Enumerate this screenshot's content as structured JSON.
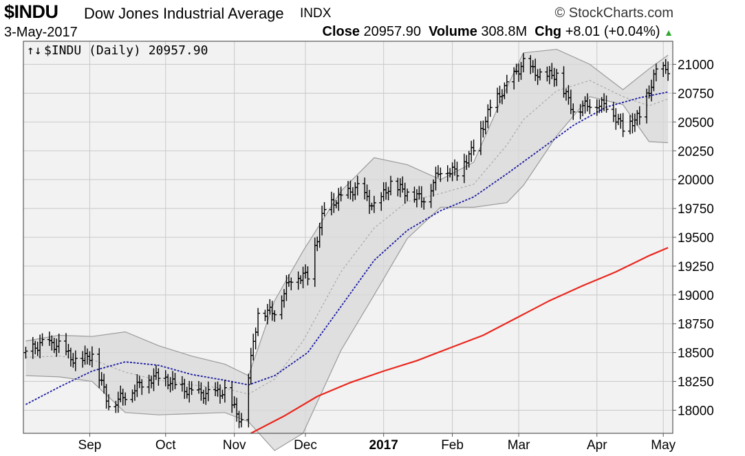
{
  "header": {
    "symbol": "$INDU",
    "company": "Dow Jones Industrial Average",
    "exchange": "INDX",
    "source": "© StockCharts.com",
    "date": "3-May-2017",
    "close_label": "Close",
    "close_value": "20957.90",
    "volume_label": "Volume",
    "volume_value": "308.8M",
    "chg_label": "Chg",
    "chg_value": "+8.01 (+0.04%)",
    "chg_direction_icon": "▲"
  },
  "legend": {
    "icon": "↑↓",
    "text": "$INDU (Daily) 20957.90"
  },
  "chart_data": {
    "type": "line",
    "ylim": [
      17800,
      21200
    ],
    "y_ticks": [
      18000,
      18250,
      18500,
      18750,
      19000,
      19250,
      19500,
      19750,
      20000,
      20250,
      20500,
      20750,
      21000
    ],
    "y_tick_labels": [
      "18000",
      "18250",
      "18500",
      "18750",
      "19000",
      "19250",
      "19500",
      "19750",
      "20000",
      "20250",
      "20500",
      "20750",
      "21000"
    ],
    "x_ticks": [
      {
        "label": "Sep",
        "date": "2016-09-01",
        "bold": false
      },
      {
        "label": "Oct",
        "date": "2016-10-03",
        "bold": false
      },
      {
        "label": "Nov",
        "date": "2016-11-01",
        "bold": false
      },
      {
        "label": "Dec",
        "date": "2016-12-01",
        "bold": false
      },
      {
        "label": "2017",
        "date": "2017-01-03",
        "bold": true
      },
      {
        "label": "Feb",
        "date": "2017-02-01",
        "bold": false
      },
      {
        "label": "Mar",
        "date": "2017-03-01",
        "bold": false
      },
      {
        "label": "Apr",
        "date": "2017-04-03",
        "bold": false
      },
      {
        "label": "May",
        "date": "2017-05-01",
        "bold": false
      }
    ],
    "colors": {
      "price": "#000000",
      "sma50": "#1a1aa0",
      "sma200": "#e8261c",
      "band_fill": "#d8d8d8",
      "band_line": "#9a9a9a",
      "band_mid": "#a8a8a8",
      "plot_bg": "#f2f2f2",
      "grid": "#c9c9c9"
    },
    "price_close": [
      [
        "2016-08-05",
        18500
      ],
      [
        "2016-08-12",
        18580
      ],
      [
        "2016-08-19",
        18560
      ],
      [
        "2016-08-26",
        18420
      ],
      [
        "2016-09-02",
        18480
      ],
      [
        "2016-09-09",
        18050
      ],
      [
        "2016-09-16",
        18130
      ],
      [
        "2016-09-23",
        18240
      ],
      [
        "2016-09-30",
        18300
      ],
      [
        "2016-10-07",
        18220
      ],
      [
        "2016-10-14",
        18150
      ],
      [
        "2016-10-21",
        18140
      ],
      [
        "2016-10-28",
        18160
      ],
      [
        "2016-11-04",
        17900
      ],
      [
        "2016-11-11",
        18850
      ],
      [
        "2016-11-18",
        18860
      ],
      [
        "2016-11-25",
        19150
      ],
      [
        "2016-12-02",
        19170
      ],
      [
        "2016-12-09",
        19750
      ],
      [
        "2016-12-16",
        19850
      ],
      [
        "2016-12-23",
        19930
      ],
      [
        "2016-12-30",
        19760
      ],
      [
        "2017-01-06",
        19960
      ],
      [
        "2017-01-13",
        19890
      ],
      [
        "2017-01-20",
        19830
      ],
      [
        "2017-01-27",
        20090
      ],
      [
        "2017-02-03",
        20070
      ],
      [
        "2017-02-10",
        20270
      ],
      [
        "2017-02-17",
        20620
      ],
      [
        "2017-02-24",
        20820
      ],
      [
        "2017-03-03",
        21010
      ],
      [
        "2017-03-10",
        20900
      ],
      [
        "2017-03-17",
        20910
      ],
      [
        "2017-03-24",
        20600
      ],
      [
        "2017-03-31",
        20660
      ],
      [
        "2017-04-07",
        20650
      ],
      [
        "2017-04-14",
        20450
      ],
      [
        "2017-04-21",
        20550
      ],
      [
        "2017-04-28",
        20940
      ],
      [
        "2017-05-03",
        20958
      ]
    ],
    "sma50": [
      [
        "2016-08-05",
        18050
      ],
      [
        "2016-08-19",
        18200
      ],
      [
        "2016-09-02",
        18340
      ],
      [
        "2016-09-16",
        18420
      ],
      [
        "2016-09-30",
        18390
      ],
      [
        "2016-10-14",
        18310
      ],
      [
        "2016-10-28",
        18260
      ],
      [
        "2016-11-07",
        18220
      ],
      [
        "2016-11-18",
        18300
      ],
      [
        "2016-12-02",
        18500
      ],
      [
        "2016-12-16",
        18900
      ],
      [
        "2016-12-30",
        19300
      ],
      [
        "2017-01-13",
        19560
      ],
      [
        "2017-01-27",
        19730
      ],
      [
        "2017-02-10",
        19850
      ],
      [
        "2017-02-24",
        20050
      ],
      [
        "2017-03-10",
        20260
      ],
      [
        "2017-03-24",
        20470
      ],
      [
        "2017-04-07",
        20630
      ],
      [
        "2017-04-21",
        20710
      ],
      [
        "2017-05-03",
        20760
      ]
    ],
    "sma200": [
      [
        "2016-11-08",
        17800
      ],
      [
        "2016-11-22",
        17950
      ],
      [
        "2016-12-06",
        18120
      ],
      [
        "2016-12-20",
        18240
      ],
      [
        "2017-01-03",
        18340
      ],
      [
        "2017-01-17",
        18430
      ],
      [
        "2017-01-31",
        18540
      ],
      [
        "2017-02-14",
        18650
      ],
      [
        "2017-02-28",
        18800
      ],
      [
        "2017-03-14",
        18950
      ],
      [
        "2017-03-28",
        19080
      ],
      [
        "2017-04-11",
        19200
      ],
      [
        "2017-04-25",
        19340
      ],
      [
        "2017-05-03",
        19410
      ]
    ],
    "bb_upper": [
      [
        "2016-08-05",
        18600
      ],
      [
        "2016-08-19",
        18650
      ],
      [
        "2016-09-02",
        18640
      ],
      [
        "2016-09-16",
        18680
      ],
      [
        "2016-09-30",
        18560
      ],
      [
        "2016-10-14",
        18470
      ],
      [
        "2016-10-28",
        18400
      ],
      [
        "2016-11-07",
        18300
      ],
      [
        "2016-11-18",
        18950
      ],
      [
        "2016-11-30",
        19380
      ],
      [
        "2016-12-16",
        19900
      ],
      [
        "2016-12-30",
        20190
      ],
      [
        "2017-01-13",
        20130
      ],
      [
        "2017-01-27",
        20000
      ],
      [
        "2017-02-10",
        20150
      ],
      [
        "2017-02-24",
        20800
      ],
      [
        "2017-03-03",
        21100
      ],
      [
        "2017-03-17",
        21130
      ],
      [
        "2017-03-31",
        21000
      ],
      [
        "2017-04-14",
        20780
      ],
      [
        "2017-04-25",
        20960
      ],
      [
        "2017-05-03",
        21080
      ]
    ],
    "bb_middle": [
      [
        "2016-08-05",
        18460
      ],
      [
        "2016-08-19",
        18470
      ],
      [
        "2016-09-02",
        18440
      ],
      [
        "2016-09-16",
        18330
      ],
      [
        "2016-09-30",
        18260
      ],
      [
        "2016-10-14",
        18220
      ],
      [
        "2016-10-28",
        18190
      ],
      [
        "2016-11-07",
        18140
      ],
      [
        "2016-11-18",
        18270
      ],
      [
        "2016-11-30",
        18600
      ],
      [
        "2016-12-16",
        19200
      ],
      [
        "2016-12-30",
        19580
      ],
      [
        "2017-01-13",
        19810
      ],
      [
        "2017-01-27",
        19880
      ],
      [
        "2017-02-10",
        19960
      ],
      [
        "2017-02-24",
        20300
      ],
      [
        "2017-03-03",
        20520
      ],
      [
        "2017-03-17",
        20770
      ],
      [
        "2017-03-31",
        20860
      ],
      [
        "2017-04-14",
        20720
      ],
      [
        "2017-04-25",
        20640
      ],
      [
        "2017-05-03",
        20700
      ]
    ],
    "bb_lower": [
      [
        "2016-08-05",
        18300
      ],
      [
        "2016-08-19",
        18290
      ],
      [
        "2016-09-02",
        18250
      ],
      [
        "2016-09-16",
        17980
      ],
      [
        "2016-09-30",
        17960
      ],
      [
        "2016-10-14",
        17970
      ],
      [
        "2016-10-28",
        17980
      ],
      [
        "2016-11-07",
        17900
      ],
      [
        "2016-11-18",
        17650
      ],
      [
        "2016-11-30",
        17800
      ],
      [
        "2016-12-16",
        18520
      ],
      [
        "2016-12-30",
        19000
      ],
      [
        "2017-01-13",
        19490
      ],
      [
        "2017-01-27",
        19760
      ],
      [
        "2017-02-10",
        19760
      ],
      [
        "2017-02-24",
        19800
      ],
      [
        "2017-03-03",
        19950
      ],
      [
        "2017-03-17",
        20380
      ],
      [
        "2017-03-31",
        20720
      ],
      [
        "2017-04-14",
        20650
      ],
      [
        "2017-04-25",
        20330
      ],
      [
        "2017-05-03",
        20320
      ]
    ]
  }
}
